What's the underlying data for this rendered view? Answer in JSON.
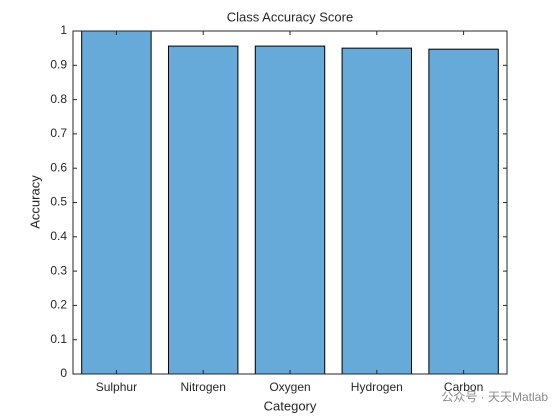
{
  "chart_data": {
    "type": "bar",
    "title": "Class Accuracy Score",
    "x_label": "Category",
    "y_label": "Accuracy",
    "categories": [
      "Sulphur",
      "Nitrogen",
      "Oxygen",
      "Hydrogen",
      "Carbon"
    ],
    "values": [
      1.0,
      0.956,
      0.956,
      0.95,
      0.947
    ],
    "color": "#65aad9",
    "ylim": [
      0,
      1
    ],
    "yticks": [
      0,
      0.1,
      0.2,
      0.3,
      0.4,
      0.5,
      0.6,
      0.7,
      0.8,
      0.9,
      1
    ],
    "grid": false
  },
  "watermark": "公众号 · 天天Matlab"
}
